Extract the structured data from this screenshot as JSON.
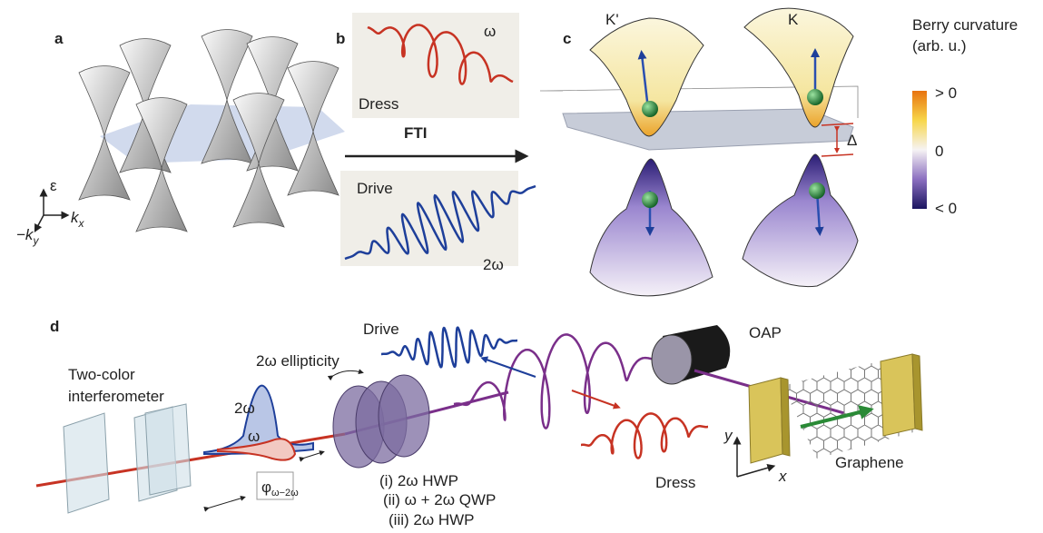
{
  "panels": {
    "a": {
      "label": "a",
      "epsilon": "ε",
      "ky": "−k",
      "ky_sub": "y",
      "kx": "k",
      "kx_sub": "x"
    },
    "b": {
      "label": "b",
      "omega": "ω",
      "dress": "Dress",
      "fti": "FTI",
      "drive": "Drive",
      "two_omega": "2ω"
    },
    "c": {
      "label": "c",
      "k_prime": "K'",
      "k": "K",
      "gap": "Δ",
      "colorbar": {
        "title": "Berry curvature",
        "unit": "(arb. u.)",
        "top": "> 0",
        "middle": "0",
        "bottom": "< 0"
      }
    },
    "d": {
      "label": "d",
      "interferometer": [
        "Two-color",
        "interferometer"
      ],
      "ellipticity": "2ω ellipticity",
      "drive": "Drive",
      "oap": "OAP",
      "two_omega": "2ω",
      "omega": "ω",
      "phase": "φ",
      "phase_sub": "ω−2ω",
      "plates": [
        "(i) 2ω HWP",
        "(ii) ω + 2ω QWP",
        "(iii) 2ω HWP"
      ],
      "dress": "Dress",
      "graphene": "Graphene",
      "y": "y",
      "x": "x"
    }
  }
}
